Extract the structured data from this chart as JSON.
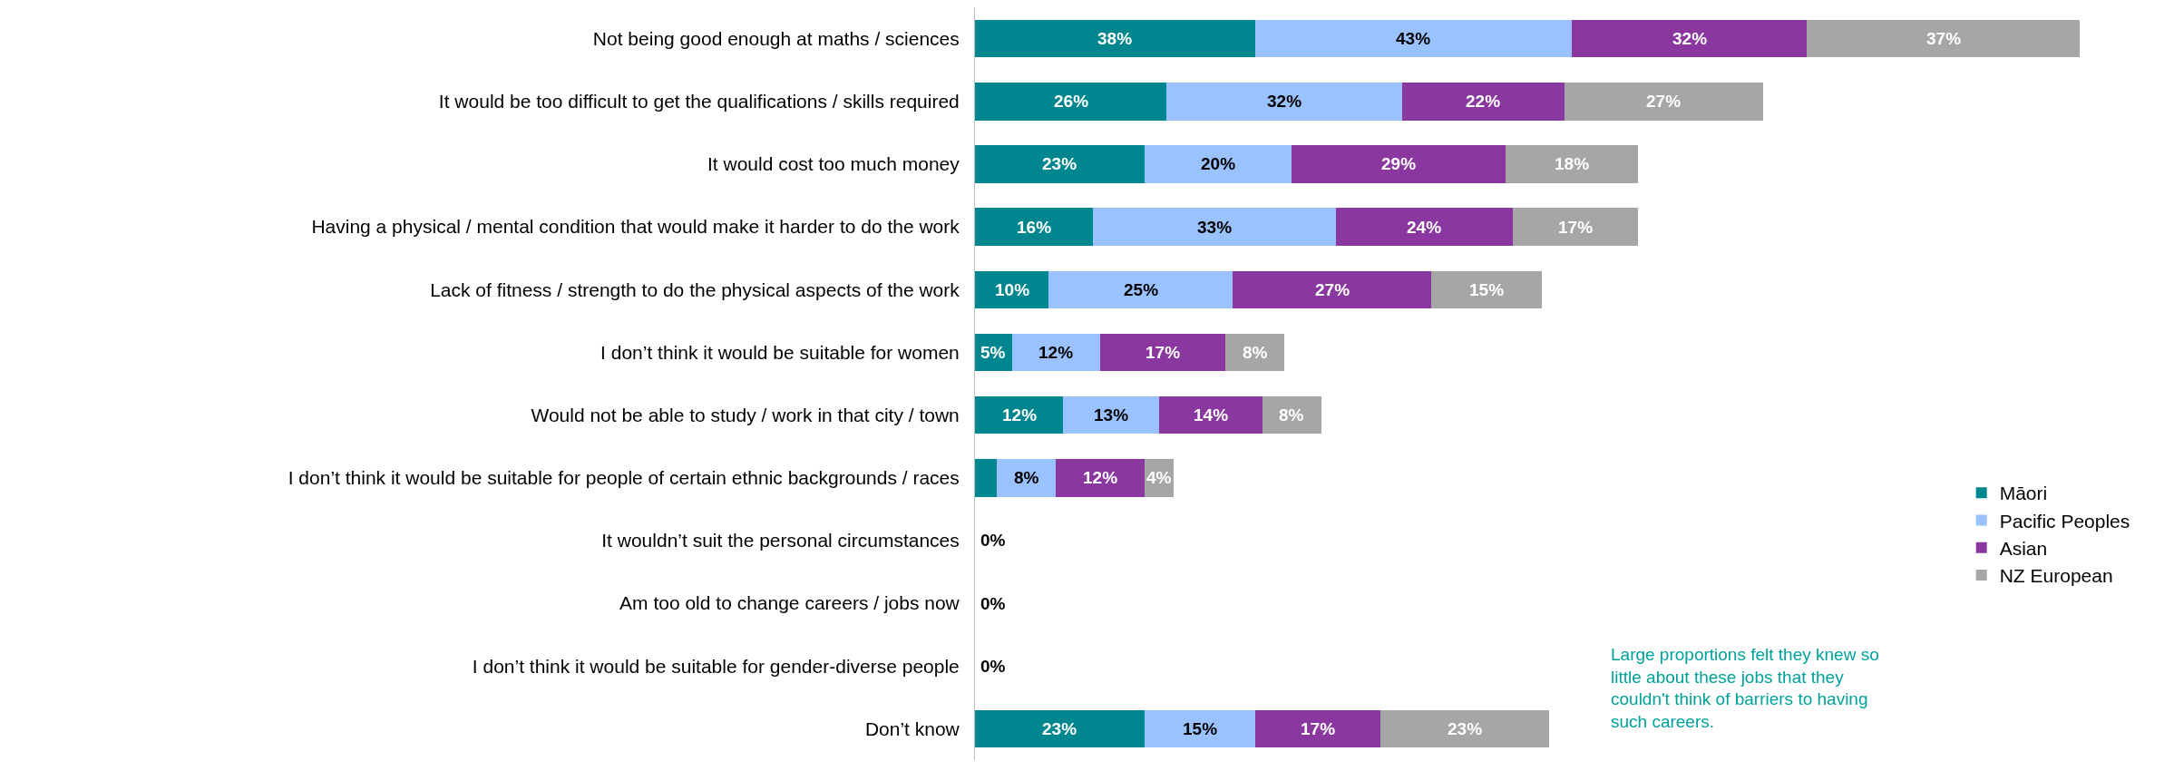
{
  "chart_data": {
    "type": "bar",
    "orientation": "horizontal",
    "stacked": true,
    "tick_labels": "y",
    "legend": "right",
    "categories": [
      "Not being good enough at maths / sciences",
      "It would be too difficult to get the qualifications / skills required",
      "It would cost too much money",
      "Having a physical / mental condition that would make it harder to do the work",
      "Lack of fitness / strength to do the physical aspects of the work",
      "I don’t think it would be suitable for women",
      "Would not be able to study / work in that city / town",
      "I don’t think it would be suitable for people of certain ethnic backgrounds / races",
      "It wouldn’t suit the personal circumstances",
      "Am too old to change careers / jobs now",
      "I don’t think it would be suitable for gender-diverse people",
      "Don’t know"
    ],
    "series": [
      {
        "name": "Māori",
        "color": "#00868f",
        "values": [
          38,
          26,
          23,
          16,
          10,
          5,
          12,
          3,
          0,
          0,
          0,
          23
        ],
        "value_labels": [
          "38%",
          "26%",
          "23%",
          "16%",
          "10%",
          "5%",
          "12%",
          null,
          "0%",
          "0%",
          "0%",
          "23%"
        ]
      },
      {
        "name": "Pacific Peoples",
        "color": "#99c2ff",
        "values": [
          43,
          32,
          20,
          33,
          25,
          12,
          13,
          8,
          0,
          0,
          0,
          15
        ],
        "value_labels": [
          "43%",
          "32%",
          "20%",
          "33%",
          "25%",
          "12%",
          "13%",
          "8%",
          null,
          null,
          null,
          "15%"
        ]
      },
      {
        "name": "Asian",
        "color": "#8a38a0",
        "values": [
          32,
          22,
          29,
          24,
          27,
          17,
          14,
          12,
          0,
          0,
          0,
          17
        ],
        "value_labels": [
          "32%",
          "22%",
          "29%",
          "24%",
          "27%",
          "17%",
          "14%",
          "12%",
          null,
          null,
          null,
          "17%"
        ]
      },
      {
        "name": "NZ European",
        "color": "#a6a6a6",
        "values": [
          37,
          27,
          18,
          17,
          15,
          8,
          8,
          4,
          0,
          0,
          0,
          23
        ],
        "value_labels": [
          "37%",
          "27%",
          "18%",
          "17%",
          "15%",
          "8%",
          "8%",
          "4%",
          null,
          null,
          null,
          "23%"
        ]
      }
    ],
    "annotations": [
      "Large proportions felt they knew so little about these jobs that they couldn't think of barriers to having such careers."
    ]
  }
}
